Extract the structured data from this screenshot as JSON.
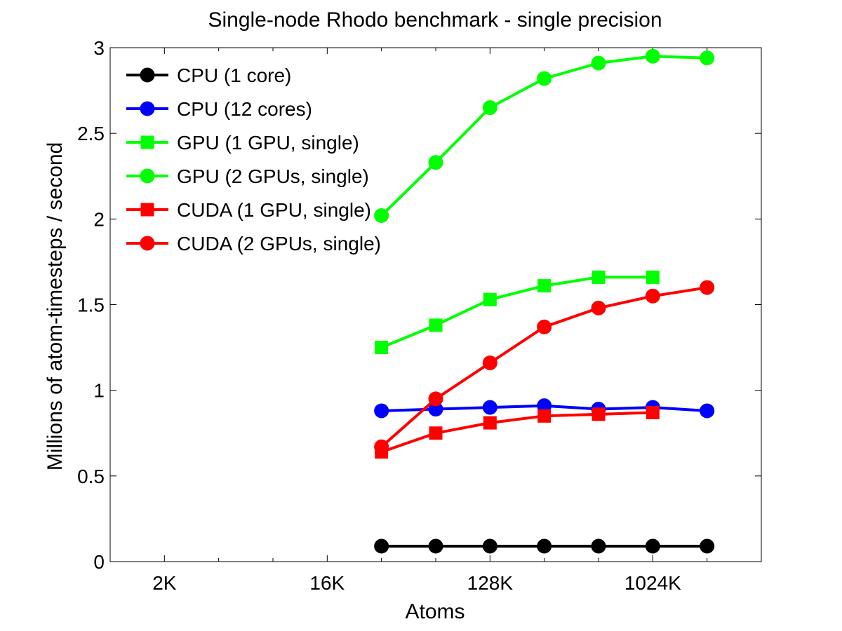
{
  "chart_data": {
    "type": "line",
    "title": "Single-node Rhodo benchmark - single precision",
    "xlabel": "Atoms",
    "ylabel": "Millions of atom-timesteps / second",
    "x_scale": "log2",
    "xlim": [
      1024,
      4194304
    ],
    "ylim": [
      0,
      3
    ],
    "x_ticks": [
      {
        "value": 2048,
        "label": "2K"
      },
      {
        "value": 16384,
        "label": "16K"
      },
      {
        "value": 131072,
        "label": "128K"
      },
      {
        "value": 1048576,
        "label": "1024K"
      }
    ],
    "x_minor_ticks": [
      4096,
      8192,
      32768,
      65536,
      262144,
      524288,
      2097152
    ],
    "y_ticks": [
      {
        "value": 0,
        "label": "0"
      },
      {
        "value": 0.5,
        "label": "0.5"
      },
      {
        "value": 1,
        "label": "1"
      },
      {
        "value": 1.5,
        "label": "1.5"
      },
      {
        "value": 2,
        "label": "2"
      },
      {
        "value": 2.5,
        "label": "2.5"
      },
      {
        "value": 3,
        "label": "3"
      }
    ],
    "legend_position": "top-left",
    "grid": false,
    "series": [
      {
        "name": "CPU (1 core)",
        "color": "#000000",
        "marker": "circle",
        "x": [
          32768,
          65536,
          131072,
          262144,
          524288,
          1048576,
          2097152
        ],
        "y": [
          0.09,
          0.09,
          0.09,
          0.09,
          0.09,
          0.09,
          0.09
        ]
      },
      {
        "name": "CPU (12 cores)",
        "color": "#0000ff",
        "marker": "circle",
        "x": [
          32768,
          65536,
          131072,
          262144,
          524288,
          1048576,
          2097152
        ],
        "y": [
          0.88,
          0.89,
          0.9,
          0.91,
          0.89,
          0.9,
          0.88
        ]
      },
      {
        "name": "GPU (1 GPU, single)",
        "color": "#00ff00",
        "marker": "square",
        "x": [
          32768,
          65536,
          131072,
          262144,
          524288,
          1048576
        ],
        "y": [
          1.25,
          1.38,
          1.53,
          1.61,
          1.66,
          1.66
        ]
      },
      {
        "name": "GPU (2 GPUs, single)",
        "color": "#00ff00",
        "marker": "circle",
        "x": [
          32768,
          65536,
          131072,
          262144,
          524288,
          1048576,
          2097152
        ],
        "y": [
          2.02,
          2.33,
          2.65,
          2.82,
          2.91,
          2.95,
          2.94
        ]
      },
      {
        "name": "CUDA (1 GPU, single)",
        "color": "#ff0000",
        "marker": "square",
        "x": [
          32768,
          65536,
          131072,
          262144,
          524288,
          1048576
        ],
        "y": [
          0.64,
          0.75,
          0.81,
          0.85,
          0.86,
          0.87
        ]
      },
      {
        "name": "CUDA (2 GPUs, single)",
        "color": "#ff0000",
        "marker": "circle",
        "x": [
          32768,
          65536,
          131072,
          262144,
          524288,
          1048576,
          2097152
        ],
        "y": [
          0.67,
          0.95,
          1.16,
          1.37,
          1.48,
          1.55,
          1.6
        ]
      }
    ]
  }
}
